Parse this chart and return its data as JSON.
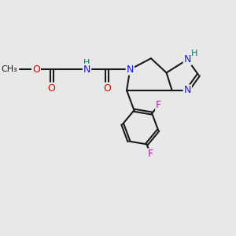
{
  "background_color": "#e8e8e8",
  "bond_color": "#1a1a1a",
  "bond_width": 1.5,
  "atom_colors": {
    "N": "#1414ff",
    "O": "#dd0000",
    "F": "#cc00cc",
    "H": "#007070",
    "C": "#1a1a1a"
  },
  "font_size": 9,
  "font_size_small": 8
}
